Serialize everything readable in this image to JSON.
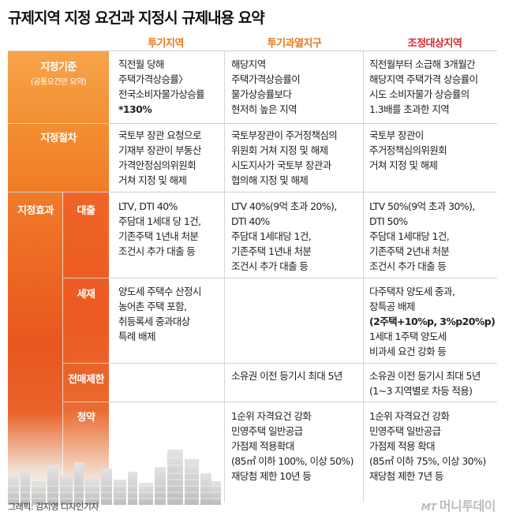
{
  "title": "규제지역 지정 요건과 지정시 규제내용 요약",
  "columns": [
    "투기지역",
    "투기과열지구",
    "조정대상지역"
  ],
  "rows": {
    "designation_criteria": {
      "label": "지정기준",
      "sublabel": "(공통요건만 요약)",
      "cells": [
        [
          "직전월 당해",
          "주택가격상승률〉",
          "전국소비자물가상승률",
          "*130%"
        ],
        [
          "해당지역",
          "주택가격상승률이",
          "물가상승률보다",
          "현저히 높은 지역"
        ],
        [
          "직전월부터 소급해 3개월간",
          "해당지역 주택가격 상승률이",
          "시도 소비자물가 상승률의",
          "1.3배를 초과한 지역"
        ]
      ]
    },
    "designation_procedure": {
      "label": "지정절차",
      "cells": [
        [
          "국토부 장관 요청으로",
          "기재부 장관이 부동산",
          "가격안정심의위원회",
          "거쳐 지정 및 해제"
        ],
        [
          "국토부장관이 주거정책심의",
          "위원회 거쳐 지정 및 해제",
          "시도지사가 국토부 장관과",
          "협의해 지정 및 해제"
        ],
        [
          "국토부 장관이",
          "주거정책심의위원회",
          "거쳐 지정 및 해제"
        ]
      ]
    },
    "effects": {
      "label": "지정효과",
      "loan": {
        "label": "대출",
        "cells": [
          [
            "LTV, DTI 40%",
            "주담대 1세대 당 1건,",
            "기존주택 1년내 처분",
            "조건시 추가 대출 등"
          ],
          [
            "LTV 40%(9억 초과 20%),",
            "DTI 40%",
            "주담대 1세대당 1건,",
            "기존주택 1년내 처분",
            "조건시 추가 대출 등"
          ],
          [
            "LTV 50%(9억 초과 30%),",
            "DTI 50%",
            "주담대 1세대당 1건,",
            "기존주택 2년내 처분",
            "조건시 추가 대출 등"
          ]
        ]
      },
      "tax": {
        "label": "세재",
        "cells": [
          [
            "양도세 주택수 산정시",
            "농어촌 주택 포함,",
            "취등록세 중과대상",
            "특례 배제"
          ],
          [],
          [
            "다주택자 양도세 중과,",
            "장특공 배제",
            "(2주택+10%p, 3%p20%p)",
            "1세대 1주택 양도세",
            "비과세 요건 강화 등"
          ]
        ]
      },
      "resale": {
        "label": "전매제한",
        "cells": [
          [],
          [
            "소유권 이전 등기시 최대 5년"
          ],
          [
            "소유권 이전 등기시 최대 5년",
            "(1~3 지역별로 차등 적용)"
          ]
        ]
      },
      "subscription": {
        "label": "청약",
        "cells": [
          [],
          [
            "1순위 자격요건 강화",
            "민영주택 일반공급",
            "가점제 적용확대",
            "(85㎡ 이하 100%, 이상 50%)",
            "재당첨 제한 10년 등"
          ],
          [
            "1순위 자격요건 강화",
            "민영주택 일반공급",
            "가점제 적용 확대",
            "(85㎡ 이하 75%, 이상 30%)",
            "재당첨 제한 7년 등"
          ]
        ]
      }
    }
  },
  "footer": {
    "credit": "그래픽: 김지영 디자인기자",
    "logo_mark": "MT",
    "logo_text": "머니투데이"
  },
  "colors": {
    "accent_orange": "#e6781a",
    "accent_red": "#d8262b",
    "sidebar_top": "#f7a44b",
    "sidebar_mid": "#ee6b24"
  }
}
